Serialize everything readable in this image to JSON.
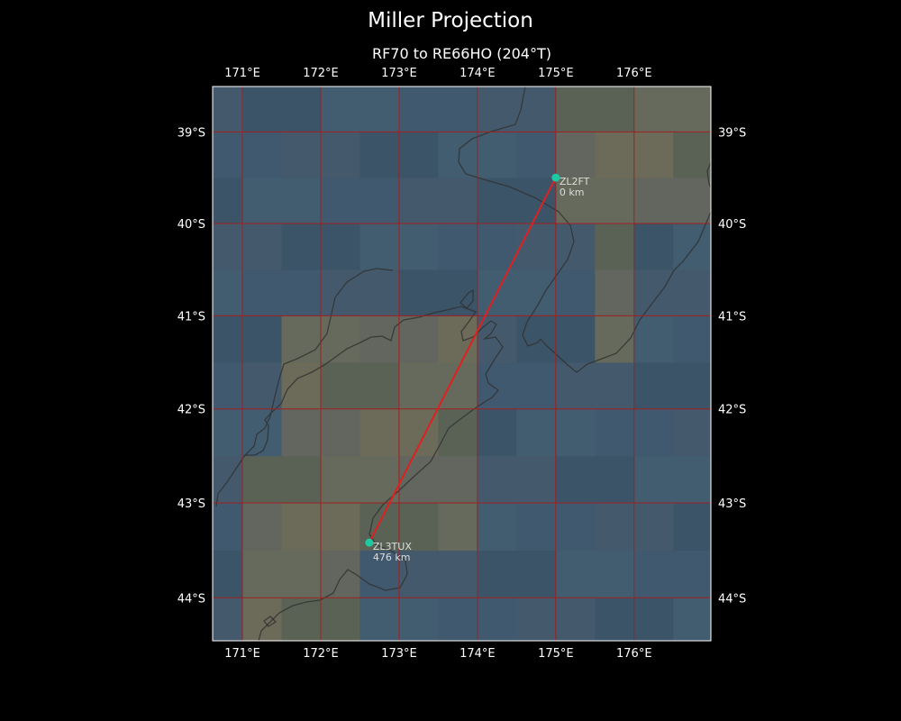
{
  "title": "Miller Projection",
  "subtitle": "RF70 to RE66HO (204°T)",
  "map": {
    "lon_range": [
      170.62,
      176.98
    ],
    "lat_range": [
      -44.45,
      -38.5
    ],
    "lon_ticks": [
      171,
      172,
      173,
      174,
      175,
      176
    ],
    "lat_ticks": [
      -39,
      -40,
      -41,
      -42,
      -43,
      -44
    ],
    "lon_tick_labels": [
      "171°E",
      "172°E",
      "173°E",
      "174°E",
      "175°E",
      "176°E"
    ],
    "lat_tick_labels": [
      "39°S",
      "40°S",
      "41°S",
      "42°S",
      "43°S",
      "44°S"
    ],
    "grid": true,
    "colors": {
      "background": "#000000",
      "gridline": "#a02020",
      "path": "#e02020",
      "station": "#1ec8a0",
      "coast": "#303030",
      "ocean": "#415a6f",
      "land": "#62665e"
    }
  },
  "stations": [
    {
      "call": "ZL2FT",
      "distance": "0 km",
      "lon": 175.0,
      "lat": -39.5
    },
    {
      "call": "ZL3TUX",
      "distance": "476 km",
      "lon": 172.62,
      "lat": -43.42
    }
  ]
}
